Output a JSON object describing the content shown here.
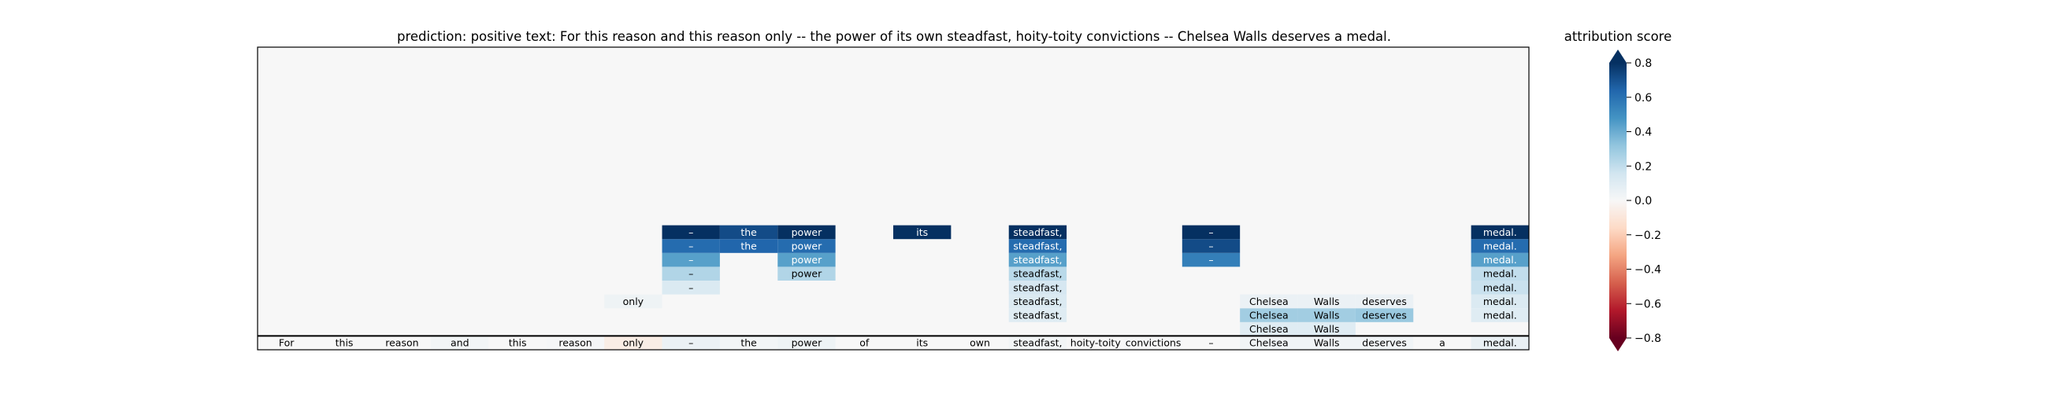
{
  "chart_data": {
    "type": "heatmap",
    "title": "prediction:  positive     text:  For this reason and this reason only -- the power of its own steadfast, hoity-toity convictions -- Chelsea Walls deserves a medal.",
    "prediction": "positive",
    "colorbar_label": "attribution score",
    "colorbar_ticks": [
      0.8,
      0.6,
      0.4,
      0.2,
      0.0,
      -0.2,
      -0.4,
      -0.6,
      -0.8
    ],
    "colorbar_tick_labels": [
      "0.8",
      "0.6",
      "0.4",
      "0.2",
      "0.0",
      "−0.2",
      "−0.4",
      "−0.6",
      "−0.8"
    ],
    "vlim": [
      -0.8,
      0.8
    ],
    "colormap": "RdBu",
    "tokens": [
      "For",
      "this",
      "reason",
      "and",
      "this",
      "reason",
      "only",
      "–",
      "the",
      "power",
      "of",
      "its",
      "own",
      "steadfast,",
      "hoity-toity",
      "convictions",
      "–",
      "Chelsea",
      "Walls",
      "deserves",
      "a",
      "medal."
    ],
    "base_attributions": [
      0.0,
      0.0,
      0.0,
      0.02,
      0.0,
      0.01,
      -0.06,
      0.05,
      0.02,
      0.04,
      0.0,
      0.0,
      0.0,
      0.02,
      0.0,
      0.01,
      0.0,
      0.03,
      0.03,
      0.03,
      0.0,
      0.06
    ],
    "stacked_cells": [
      {
        "col": 6,
        "level": 3,
        "text": "only",
        "value": 0.04
      },
      {
        "col": 7,
        "level": 4,
        "text": "–",
        "value": 0.12
      },
      {
        "col": 7,
        "level": 5,
        "text": "–",
        "value": 0.24
      },
      {
        "col": 7,
        "level": 6,
        "text": "–",
        "value": 0.44
      },
      {
        "col": 7,
        "level": 7,
        "text": "–",
        "value": 0.62
      },
      {
        "col": 7,
        "level": 8,
        "text": "–",
        "value": 0.82
      },
      {
        "col": 8,
        "level": 7,
        "text": "the",
        "value": 0.64
      },
      {
        "col": 8,
        "level": 8,
        "text": "the",
        "value": 0.72
      },
      {
        "col": 9,
        "level": 5,
        "text": "power",
        "value": 0.24
      },
      {
        "col": 9,
        "level": 6,
        "text": "power",
        "value": 0.44
      },
      {
        "col": 9,
        "level": 7,
        "text": "power",
        "value": 0.62
      },
      {
        "col": 9,
        "level": 8,
        "text": "power",
        "value": 0.82
      },
      {
        "col": 11,
        "level": 8,
        "text": "its",
        "value": 0.85
      },
      {
        "col": 13,
        "level": 2,
        "text": "steadfast,",
        "value": 0.1
      },
      {
        "col": 13,
        "level": 3,
        "text": "steadfast,",
        "value": 0.12
      },
      {
        "col": 13,
        "level": 4,
        "text": "steadfast,",
        "value": 0.14
      },
      {
        "col": 13,
        "level": 5,
        "text": "steadfast,",
        "value": 0.22
      },
      {
        "col": 13,
        "level": 6,
        "text": "steadfast,",
        "value": 0.44
      },
      {
        "col": 13,
        "level": 7,
        "text": "steadfast,",
        "value": 0.62
      },
      {
        "col": 13,
        "level": 8,
        "text": "steadfast,",
        "value": 0.82
      },
      {
        "col": 16,
        "level": 6,
        "text": "–",
        "value": 0.55
      },
      {
        "col": 16,
        "level": 7,
        "text": "–",
        "value": 0.72
      },
      {
        "col": 16,
        "level": 8,
        "text": "–",
        "value": 0.85
      },
      {
        "col": 17,
        "level": 1,
        "text": "Chelsea",
        "value": 0.1
      },
      {
        "col": 17,
        "level": 2,
        "text": "Chelsea",
        "value": 0.28
      },
      {
        "col": 17,
        "level": 3,
        "text": "Chelsea",
        "value": 0.05
      },
      {
        "col": 18,
        "level": 1,
        "text": "Walls",
        "value": 0.1
      },
      {
        "col": 18,
        "level": 2,
        "text": "Walls",
        "value": 0.28
      },
      {
        "col": 18,
        "level": 3,
        "text": "Walls",
        "value": 0.05
      },
      {
        "col": 19,
        "level": 2,
        "text": "deserves",
        "value": 0.3
      },
      {
        "col": 19,
        "level": 3,
        "text": "deserves",
        "value": 0.05
      },
      {
        "col": 21,
        "level": 2,
        "text": "medal.",
        "value": 0.1
      },
      {
        "col": 21,
        "level": 3,
        "text": "medal.",
        "value": 0.12
      },
      {
        "col": 21,
        "level": 4,
        "text": "medal.",
        "value": 0.18
      },
      {
        "col": 21,
        "level": 5,
        "text": "medal.",
        "value": 0.2
      },
      {
        "col": 21,
        "level": 6,
        "text": "medal.",
        "value": 0.44
      },
      {
        "col": 21,
        "level": 7,
        "text": "medal.",
        "value": 0.62
      },
      {
        "col": 21,
        "level": 8,
        "text": "medal.",
        "value": 0.85
      }
    ],
    "grid": false
  }
}
